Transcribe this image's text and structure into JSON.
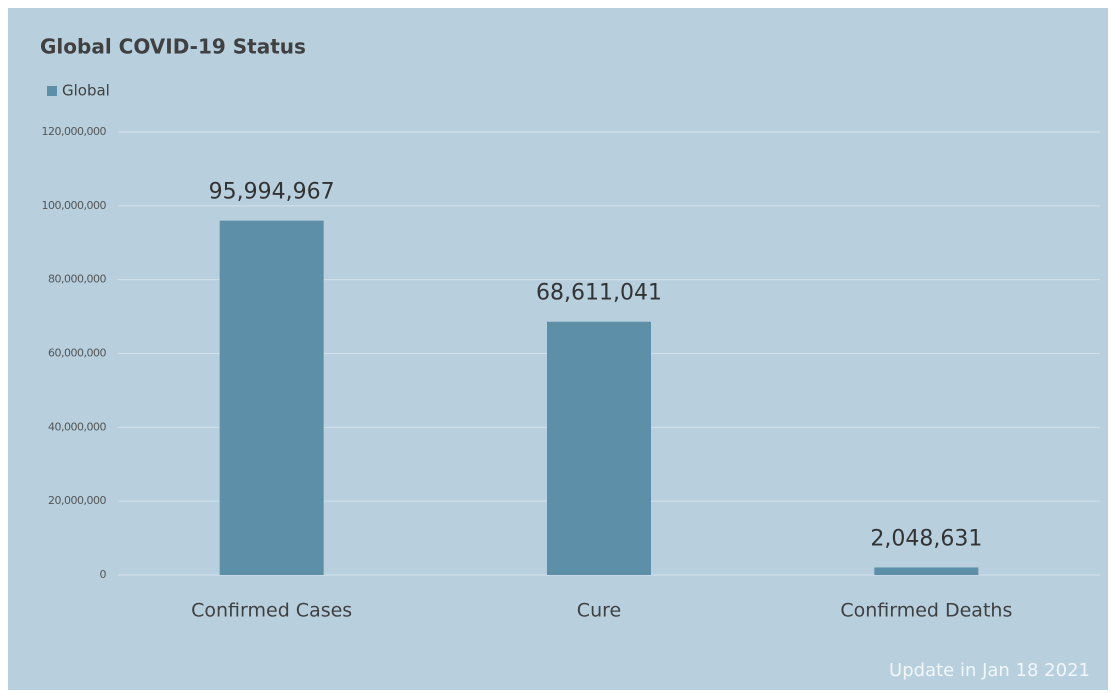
{
  "chart_data": {
    "type": "bar",
    "title": "Global COVID-19 Status",
    "categories": [
      "Confirmed Cases",
      "Cure",
      "Confirmed Deaths"
    ],
    "series": [
      {
        "name": "Global",
        "color": "#5e8fa8",
        "values": [
          95994967,
          68611041,
          2048631
        ],
        "value_labels": [
          "95,994,967",
          "68,611,041",
          "2,048,631"
        ]
      }
    ],
    "ylim": [
      0,
      120000000
    ],
    "yticks": [
      0,
      {
        "value": 20000000,
        "label": "20,000,000"
      },
      {
        "value": 40000000,
        "label": "40,000,000"
      },
      {
        "value": 60000000,
        "label": "60,000,000"
      },
      {
        "value": 80000000,
        "label": "80,000,000"
      },
      {
        "value": 100000000,
        "label": "100,000,000"
      },
      {
        "value": 120000000,
        "label": "120,000,000"
      }
    ],
    "grid": true,
    "legend": "top-left",
    "annotation": "Update in Jan 18 2021"
  }
}
